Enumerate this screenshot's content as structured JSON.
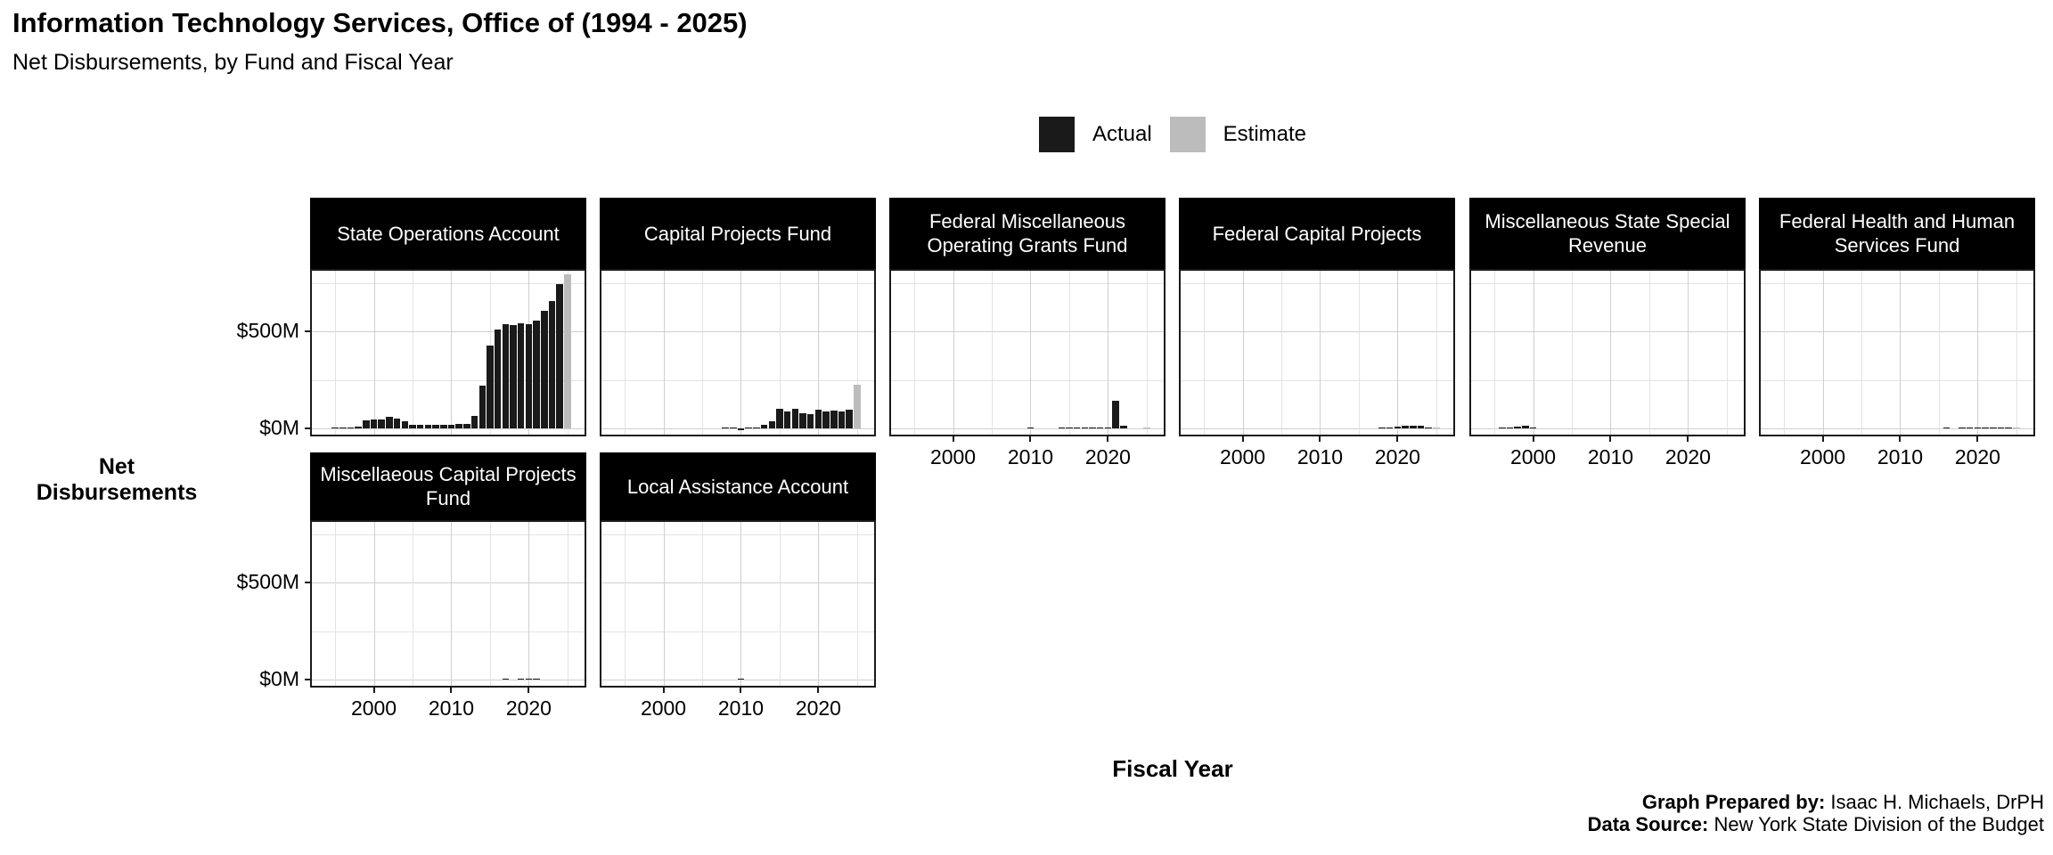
{
  "page": {
    "title": "Information Technology Services, Office of (1994 - 2025)",
    "subtitle": "Net Disbursements, by Fund and Fiscal Year"
  },
  "legend": {
    "actual_label": "Actual",
    "estimate_label": "Estimate",
    "actual_color": "#1a1a1a",
    "estimate_color": "#bcbcbc"
  },
  "axes": {
    "y_title": "Net Disbursements",
    "x_title": "Fiscal Year",
    "x_tick_years": [
      2000,
      2010,
      2020
    ],
    "x_tick_labels": [
      "2000",
      "2010",
      "2020"
    ],
    "y_tick_values": [
      0,
      500
    ],
    "y_tick_labels": [
      "$0M",
      "$500M"
    ]
  },
  "footer": {
    "prepared_label": "Graph Prepared by:",
    "prepared_value": " Isaac H. Michaels, DrPH",
    "source_label": "Data Source:",
    "source_value": " New York State Division of the Budget"
  },
  "chart_data": {
    "type": "bar",
    "facet_by": "Fund",
    "units": "USD millions",
    "years_start": 1994,
    "years_end": 2025,
    "estimate_year": 2025,
    "ylim": [
      -40,
      860
    ],
    "y_major_gridlines": [
      0,
      500
    ],
    "y_minor_gridlines": [
      250,
      750
    ],
    "x_major_gridlines": [
      2000,
      2010,
      2020
    ],
    "x_minor_gridlines": [
      1995,
      2005,
      2015,
      2025
    ],
    "grid": true,
    "legend_position": "top",
    "panels": [
      {
        "title": "State Operations Account",
        "values": [
          0,
          1,
          3,
          5,
          8,
          42,
          45,
          48,
          58,
          50,
          38,
          20,
          18,
          18,
          20,
          20,
          20,
          22,
          25,
          65,
          218,
          425,
          508,
          538,
          531,
          543,
          535,
          557,
          607,
          657,
          742,
          792
        ]
      },
      {
        "title": "Capital Projects Fund",
        "values": [
          0,
          0,
          0,
          0,
          0,
          0,
          0,
          0,
          0,
          0,
          0,
          0,
          0,
          0,
          2,
          2,
          -8,
          2,
          2,
          20,
          35,
          100,
          85,
          100,
          78,
          75,
          95,
          85,
          92,
          85,
          95,
          225
        ]
      },
      {
        "title": "Federal Miscellaneous Operating Grants Fund",
        "values": [
          0,
          0,
          0,
          0,
          0,
          0,
          0,
          0,
          0,
          0,
          0,
          0,
          0,
          0,
          0,
          0,
          3,
          0,
          0,
          0,
          1,
          1,
          1,
          1,
          1,
          1,
          2,
          140,
          15,
          0,
          0,
          1
        ]
      },
      {
        "title": "Federal Capital Projects",
        "values": [
          0,
          0,
          0,
          0,
          0,
          0,
          0,
          0,
          0,
          0,
          0,
          0,
          0,
          0,
          0,
          0,
          0,
          0,
          0,
          0,
          0,
          0,
          0,
          0,
          2,
          5,
          10,
          12,
          14,
          14,
          6,
          2
        ]
      },
      {
        "title": "Miscellaneous State Special Revenue",
        "values": [
          0,
          0,
          2,
          3,
          8,
          12,
          5,
          0,
          0,
          0,
          0,
          0,
          0,
          0,
          0,
          0,
          0,
          0,
          0,
          0,
          0,
          0,
          0,
          0,
          0,
          0,
          0,
          0,
          0,
          0,
          0,
          0
        ]
      },
      {
        "title": "Federal Health and Human Services Fund",
        "values": [
          0,
          0,
          0,
          0,
          0,
          0,
          0,
          0,
          0,
          0,
          0,
          0,
          0,
          0,
          0,
          0,
          0,
          0,
          0,
          0,
          0,
          0,
          3,
          0,
          1,
          2,
          3,
          3,
          3,
          6,
          3,
          1
        ]
      },
      {
        "title": "Miscellaeous Capital Projects Fund",
        "values": [
          0,
          0,
          0,
          0,
          0,
          0,
          0,
          0,
          0,
          0,
          0,
          0,
          0,
          0,
          0,
          0,
          0,
          0,
          0,
          0,
          0,
          0,
          0,
          2,
          0,
          2,
          4,
          2,
          0,
          0,
          0,
          0
        ]
      },
      {
        "title": "Local Assistance Account",
        "values": [
          0,
          0,
          0,
          0,
          0,
          0,
          0,
          0,
          0,
          0,
          0,
          0,
          0,
          0,
          0,
          0,
          1,
          0,
          0,
          0,
          0,
          0,
          0,
          0,
          0,
          0,
          0,
          0,
          0,
          0,
          0,
          0
        ]
      }
    ]
  }
}
